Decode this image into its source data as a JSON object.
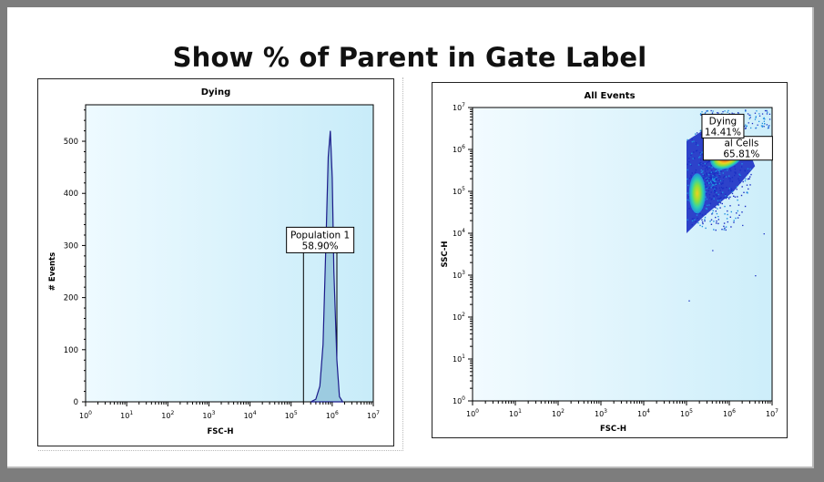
{
  "title": "Show % of Parent in Gate Label",
  "chart_data": [
    {
      "type": "area",
      "title": "Dying",
      "xlabel": "FSC-H",
      "ylabel": "# Events",
      "x_scale": "log",
      "xlim": [
        1,
        10000000
      ],
      "ylim": [
        0,
        570
      ],
      "x_ticks": [
        "10^0",
        "10^1",
        "10^2",
        "10^3",
        "10^4",
        "10^5",
        "10^6",
        "10^7"
      ],
      "y_ticks": [
        0,
        100,
        200,
        300,
        400,
        500
      ],
      "series": [
        {
          "x": [
            300000,
            400000,
            500000,
            600000,
            700000,
            800000,
            900000,
            1000000,
            1100000,
            1300000,
            1500000,
            1800000
          ],
          "y": [
            0,
            5,
            30,
            110,
            300,
            470,
            520,
            430,
            250,
            80,
            10,
            0
          ]
        }
      ],
      "gate": {
        "name": "Population 1",
        "percent": "58.90%",
        "x_range": [
          200000,
          1300000
        ]
      },
      "colors": {
        "fill_light": "#dff5fc",
        "fill_dark": "#bfe9f7",
        "peak_fill": "#9ccbe0",
        "peak_line": "#1a1a8a"
      }
    },
    {
      "type": "scatter",
      "title": "All Events",
      "xlabel": "FSC-H",
      "ylabel": "SSC-H",
      "x_scale": "log",
      "y_scale": "log",
      "xlim": [
        1,
        10000000
      ],
      "ylim": [
        1,
        10000000
      ],
      "x_ticks": [
        "10^0",
        "10^1",
        "10^2",
        "10^3",
        "10^4",
        "10^5",
        "10^6",
        "10^7"
      ],
      "y_ticks": [
        "10^0",
        "10^1",
        "10^2",
        "10^3",
        "10^4",
        "10^5",
        "10^6",
        "10^7"
      ],
      "gates": [
        {
          "name": "Dying",
          "percent": "14.41%"
        },
        {
          "name": "al Cells",
          "percent": "65.81%"
        }
      ],
      "density_colors": [
        "#1b2fc4",
        "#1f8fe0",
        "#2fd0b0",
        "#8be03c",
        "#f0d020",
        "#f07020",
        "#e01818"
      ]
    }
  ]
}
